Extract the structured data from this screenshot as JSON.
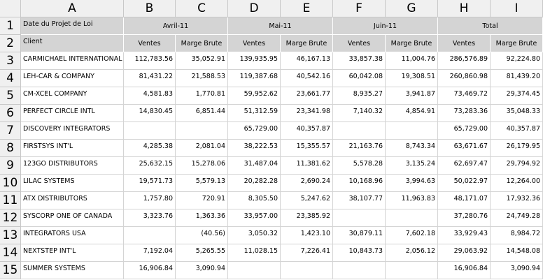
{
  "columns": [
    "A",
    "B",
    "C",
    "D",
    "E",
    "F",
    "G",
    "H",
    "I"
  ],
  "row_numbers": [
    "1",
    "2",
    "3",
    "4",
    "5",
    "6",
    "7",
    "8",
    "9",
    "10",
    "11",
    "12",
    "13",
    "14",
    "15"
  ],
  "header": {
    "a1": "Date du Projet de Loi",
    "a2": "Client",
    "months": [
      "Avril-11",
      "Mai-11",
      "Juin-11",
      "Total"
    ],
    "subheaders": [
      "Ventes",
      "Marge Brute",
      "Ventes",
      "Marge Brute",
      "Ventes",
      "Marge Brute",
      "Ventes",
      "Marge Brute"
    ]
  },
  "rows": [
    [
      "CARMICHAEL INTERNATIONAL",
      "112,783.56",
      "35,052.91",
      "139,935.95",
      "46,167.13",
      "33,857.38",
      "11,004.76",
      "286,576.89",
      "92,224.80"
    ],
    [
      "LEH-CAR & COMPANY",
      "81,431.22",
      "21,588.53",
      "119,387.68",
      "40,542.16",
      "60,042.08",
      "19,308.51",
      "260,860.98",
      "81,439.20"
    ],
    [
      "CM-XCEL COMPANY",
      "4,581.83",
      "1,770.81",
      "59,952.62",
      "23,661.77",
      "8,935.27",
      "3,941.87",
      "73,469.72",
      "29,374.45"
    ],
    [
      "PERFECT CIRCLE INTL",
      "14,830.45",
      "6,851.44",
      "51,312.59",
      "23,341.98",
      "7,140.32",
      "4,854.91",
      "73,283.36",
      "35,048.33"
    ],
    [
      "DISCOVERY INTEGRATORS",
      null,
      null,
      "65,729.00",
      "40,357.87",
      null,
      null,
      "65,729.00",
      "40,357.87"
    ],
    [
      "FIRSTSYS INT'L",
      "4,285.38",
      "2,081.04",
      "38,222.53",
      "15,355.57",
      "21,163.76",
      "8,743.34",
      "63,671.67",
      "26,179.95"
    ],
    [
      "123GO DISTRIBUTORS",
      "25,632.15",
      "15,278.06",
      "31,487.04",
      "11,381.62",
      "5,578.28",
      "3,135.24",
      "62,697.47",
      "29,794.92"
    ],
    [
      "LILAC SYSTEMS",
      "19,571.73",
      "5,579.13",
      "20,282.28",
      "2,690.24",
      "10,168.96",
      "3,994.63",
      "50,022.97",
      "12,264.00"
    ],
    [
      "ATX DISTRIBUTORS",
      "1,757.80",
      "720.91",
      "8,305.50",
      "5,247.62",
      "38,107.77",
      "11,963.83",
      "48,171.07",
      "17,932.36"
    ],
    [
      "SYSCORP ONE OF CANADA",
      "3,323.76",
      "1,363.36",
      "33,957.00",
      "23,385.92",
      null,
      null,
      "37,280.76",
      "24,749.28"
    ],
    [
      "INTEGRATORS USA",
      null,
      "(40.56)",
      "3,050.32",
      "1,423.10",
      "30,879.11",
      "7,602.18",
      "33,929.43",
      "8,984.72"
    ],
    [
      "NEXTSTEP INT'L",
      "7,192.04",
      "5,265.55",
      "11,028.15",
      "7,226.41",
      "10,843.73",
      "2,056.12",
      "29,063.92",
      "14,548.08"
    ],
    [
      "SUMMER SYSTEMS",
      "16,906.84",
      "3,090.94",
      null,
      null,
      null,
      null,
      "16,906.84",
      "3,090.94"
    ]
  ]
}
